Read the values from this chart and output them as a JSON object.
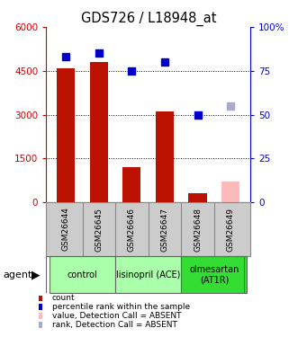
{
  "title": "GDS726 / L18948_at",
  "samples": [
    "GSM26644",
    "GSM26645",
    "GSM26646",
    "GSM26647",
    "GSM26648",
    "GSM26649"
  ],
  "counts": [
    4600,
    4800,
    1200,
    3100,
    300,
    null
  ],
  "ranks": [
    83,
    85,
    75,
    80,
    50,
    null
  ],
  "absent_count": [
    null,
    null,
    null,
    null,
    null,
    700
  ],
  "absent_rank": [
    null,
    null,
    null,
    null,
    null,
    55
  ],
  "groups": [
    {
      "label": "control",
      "span": [
        0,
        1
      ],
      "color": "#aaffaa"
    },
    {
      "label": "lisinopril (ACE)",
      "span": [
        2,
        3
      ],
      "color": "#aaffaa"
    },
    {
      "label": "olmesartan\n(AT1R)",
      "span": [
        4,
        5
      ],
      "color": "#33dd33"
    }
  ],
  "ylim_left": [
    0,
    6000
  ],
  "ylim_right": [
    0,
    100
  ],
  "yticks_left": [
    0,
    1500,
    3000,
    4500,
    6000
  ],
  "ytick_labels_left": [
    "0",
    "1500",
    "3000",
    "4500",
    "6000"
  ],
  "yticks_right": [
    0,
    25,
    50,
    75,
    100
  ],
  "ytick_labels_right": [
    "0",
    "25",
    "50",
    "75",
    "100%"
  ],
  "bar_color": "#bb1100",
  "absent_bar_color": "#ffbbbb",
  "dot_color": "#0000cc",
  "absent_dot_color": "#aaaacc",
  "left_tick_color": "#cc0000",
  "right_tick_color": "#0000cc",
  "sample_bg": "#cccccc",
  "bg_color": "#ffffff",
  "legend_items": [
    {
      "color": "#bb1100",
      "label": "count"
    },
    {
      "color": "#0000cc",
      "label": "percentile rank within the sample"
    },
    {
      "color": "#ffbbbb",
      "label": "value, Detection Call = ABSENT"
    },
    {
      "color": "#aaaacc",
      "label": "rank, Detection Call = ABSENT"
    }
  ]
}
